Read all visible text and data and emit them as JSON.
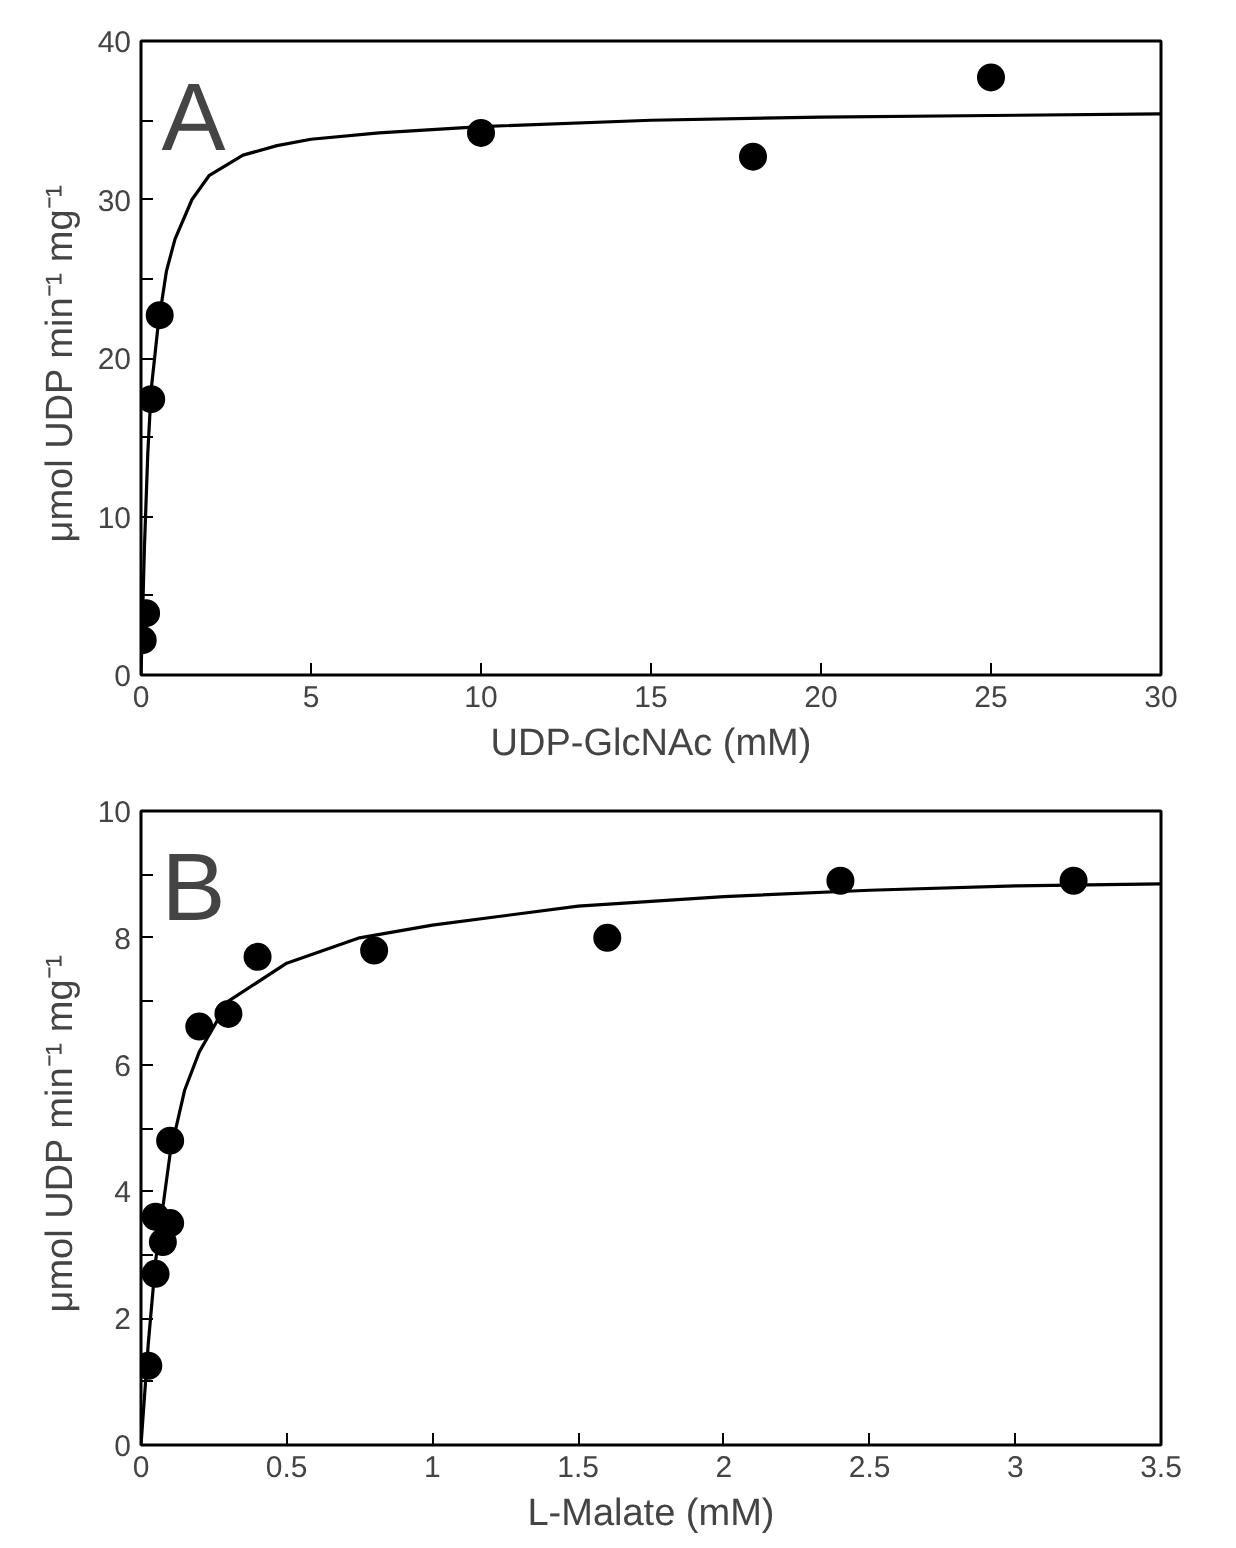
{
  "chart_data": [
    {
      "type": "scatter",
      "xlabel": "UDP-GlcNAc (mM)",
      "ylabel": "μmol UDP  min⁻¹ mg⁻¹",
      "annotations": [
        "A"
      ],
      "xlim": [
        0,
        30
      ],
      "ylim": [
        0,
        40
      ],
      "xticks": [
        0,
        5,
        10,
        15,
        20,
        25,
        30
      ],
      "yticks": [
        0,
        {
          "value": 5,
          "label": null
        },
        10,
        {
          "value": 15,
          "label": null
        },
        20,
        {
          "value": 25,
          "label": null
        },
        30,
        {
          "value": 35,
          "label": null
        },
        40
      ],
      "grid": false,
      "marker": "circle",
      "series": [
        {
          "color": "#000000",
          "x": [
            0.05,
            0.15,
            0.3,
            0.55,
            10,
            18,
            25
          ],
          "values": [
            2.2,
            3.9,
            17.4,
            22.7,
            34.2,
            32.7,
            37.7
          ]
        },
        {
          "type": "line",
          "color": "#000000",
          "marker": "none",
          "line_style": "solid",
          "x": [
            0,
            0.1,
            0.2,
            0.3,
            0.5,
            0.75,
            1,
            1.5,
            2,
            3,
            4,
            5,
            7,
            10,
            15,
            20,
            25,
            30
          ],
          "values": [
            0,
            8,
            14,
            18,
            22,
            25.5,
            27.5,
            30,
            31.5,
            32.8,
            33.4,
            33.8,
            34.2,
            34.6,
            35,
            35.2,
            35.3,
            35.4
          ]
        }
      ]
    },
    {
      "type": "scatter",
      "xlabel": "L-Malate (mM)",
      "ylabel": "μmol UDP  min⁻¹ mg⁻¹",
      "annotations": [
        "B"
      ],
      "xlim": [
        0,
        3.5
      ],
      "ylim": [
        0,
        10
      ],
      "xticks": [
        0,
        0.5,
        1,
        1.5,
        2,
        2.5,
        3,
        3.5
      ],
      "yticks": [
        0,
        {
          "value": 1,
          "label": null
        },
        2,
        {
          "value": 3,
          "label": null
        },
        4,
        {
          "value": 5,
          "label": null
        },
        6,
        {
          "value": 7,
          "label": null
        },
        8,
        {
          "value": 9,
          "label": null
        },
        10
      ],
      "grid": false,
      "marker": "circle",
      "series": [
        {
          "color": "#000000",
          "x": [
            0.025,
            0.05,
            0.05,
            0.075,
            0.1,
            0.1,
            0.2,
            0.3,
            0.4,
            0.8,
            1.6,
            2.4,
            3.2
          ],
          "values": [
            1.25,
            2.7,
            3.6,
            3.2,
            3.5,
            4.8,
            6.6,
            6.8,
            7.7,
            7.8,
            8.0,
            8.9,
            8.9
          ]
        },
        {
          "type": "line",
          "color": "#000000",
          "marker": "none",
          "line_style": "solid",
          "x": [
            0,
            0.025,
            0.05,
            0.1,
            0.15,
            0.2,
            0.3,
            0.5,
            0.75,
            1,
            1.5,
            2,
            2.5,
            3,
            3.5
          ],
          "values": [
            0,
            1.6,
            2.9,
            4.6,
            5.6,
            6.2,
            7.0,
            7.6,
            8.0,
            8.2,
            8.5,
            8.65,
            8.75,
            8.82,
            8.85
          ]
        }
      ]
    }
  ]
}
